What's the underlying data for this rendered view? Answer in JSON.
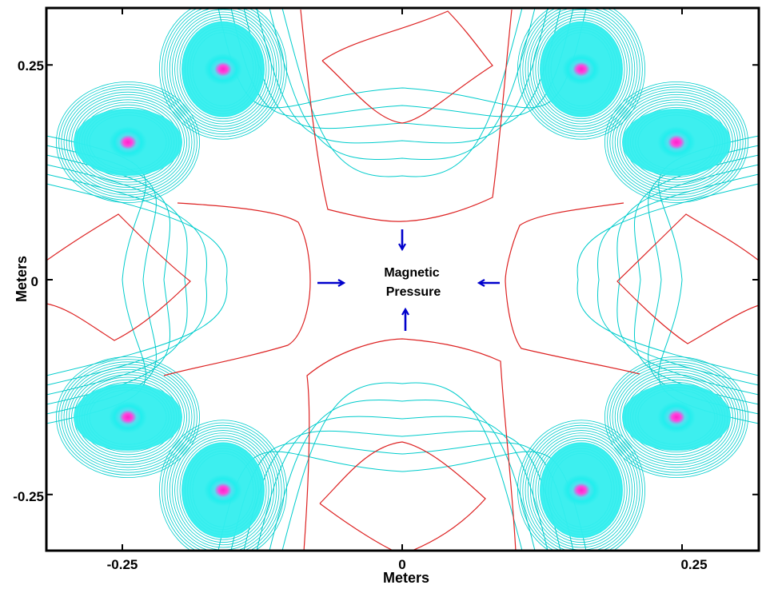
{
  "figure": {
    "x_axis_label": "Meters",
    "y_axis_label": "Meters",
    "x_ticks": [
      {
        "value": -0.25,
        "label": "-0.25"
      },
      {
        "value": 0,
        "label": "0"
      },
      {
        "value": 0.25,
        "label": "0.25"
      }
    ],
    "y_ticks": [
      {
        "value": 0.25,
        "label": "0.25"
      },
      {
        "value": 0,
        "label": "0"
      },
      {
        "value": -0.25,
        "label": "-0.25"
      }
    ],
    "x_range": [
      -0.3,
      0.3
    ],
    "y_range": [
      -0.315,
      0.315
    ],
    "annotation": {
      "line1": "Magnetic",
      "line2": "Pressure"
    },
    "arrow_directions": [
      "down",
      "right",
      "left",
      "up"
    ],
    "field_coils": [
      {
        "x": -0.16,
        "y": 0.245
      },
      {
        "x": -0.245,
        "y": 0.16
      },
      {
        "x": -0.245,
        "y": -0.16
      },
      {
        "x": -0.16,
        "y": -0.245
      },
      {
        "x": 0.16,
        "y": 0.245
      },
      {
        "x": 0.245,
        "y": 0.16
      },
      {
        "x": 0.245,
        "y": -0.16
      },
      {
        "x": 0.16,
        "y": -0.245
      }
    ],
    "colors": {
      "contour": "#00cccc",
      "separatrix": "#dd2222",
      "coil_core": "#ff33cc",
      "coil_halo": "#33eeee",
      "arrow": "#0000cc"
    }
  }
}
